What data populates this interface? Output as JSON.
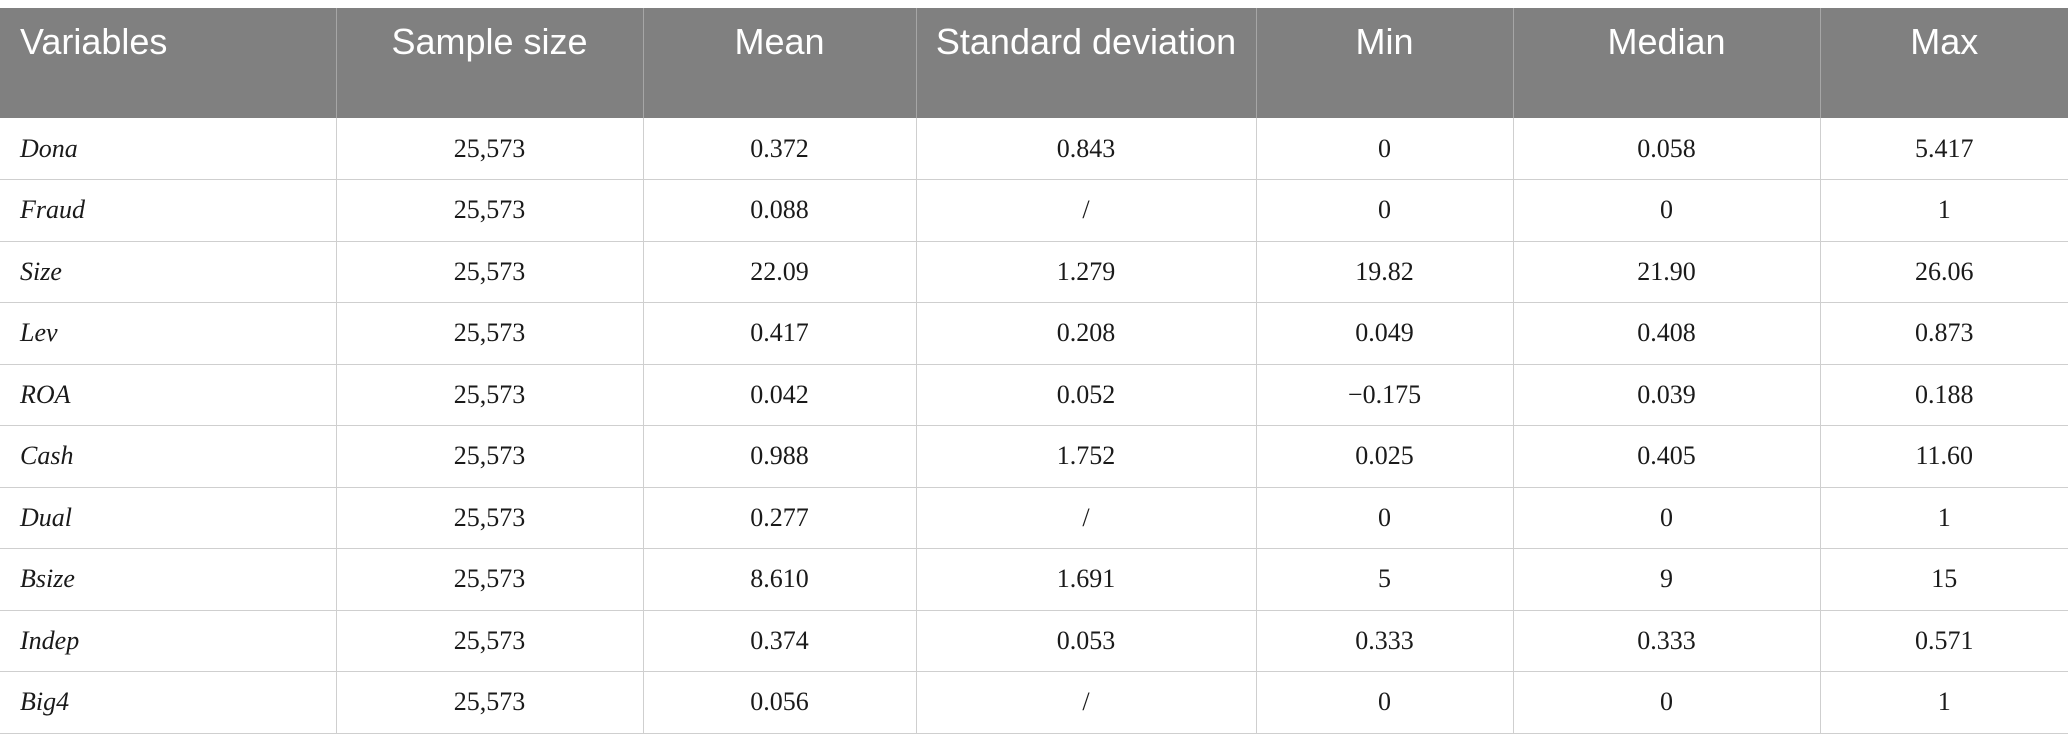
{
  "table": {
    "headers": [
      "Variables",
      "Sample size",
      "Mean",
      "Standard deviation",
      "Min",
      "Median",
      "Max"
    ],
    "rows": [
      [
        "Dona",
        "25,573",
        "0.372",
        "0.843",
        "0",
        "0.058",
        "5.417"
      ],
      [
        "Fraud",
        "25,573",
        "0.088",
        "/",
        "0",
        "0",
        "1"
      ],
      [
        "Size",
        "25,573",
        "22.09",
        "1.279",
        "19.82",
        "21.90",
        "26.06"
      ],
      [
        "Lev",
        "25,573",
        "0.417",
        "0.208",
        "0.049",
        "0.408",
        "0.873"
      ],
      [
        "ROA",
        "25,573",
        "0.042",
        "0.052",
        "−0.175",
        "0.039",
        "0.188"
      ],
      [
        "Cash",
        "25,573",
        "0.988",
        "1.752",
        "0.025",
        "0.405",
        "11.60"
      ],
      [
        "Dual",
        "25,573",
        "0.277",
        "/",
        "0",
        "0",
        "1"
      ],
      [
        "Bsize",
        "25,573",
        "8.610",
        "1.691",
        "5",
        "9",
        "15"
      ],
      [
        "Indep",
        "25,573",
        "0.374",
        "0.053",
        "0.333",
        "0.333",
        "0.571"
      ],
      [
        "Big4",
        "25,573",
        "0.056",
        "/",
        "0",
        "0",
        "1"
      ]
    ]
  },
  "colors": {
    "header_background": "#808080",
    "header_text": "#ffffff",
    "grid_line": "#cfcfcf"
  }
}
